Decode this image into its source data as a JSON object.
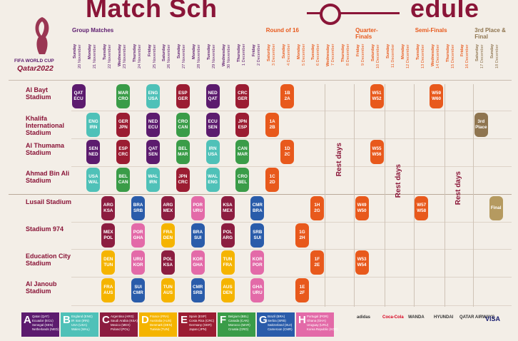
{
  "header": {
    "title_parts": [
      "Match Sch",
      "edule"
    ],
    "logo": [
      "FIFA WORLD CUP",
      "Qatar2022"
    ]
  },
  "stages": [
    {
      "name": "Group Matches",
      "color": "#5c1b6e"
    },
    {
      "name": "Round of 16",
      "color": "#e8591c"
    },
    {
      "name": "Quarter-Finals",
      "color": "#e8591c"
    },
    {
      "name": "Semi-Finals",
      "color": "#e8591c"
    },
    {
      "name": "3rd Place & Final",
      "color": "#8f7550"
    }
  ],
  "days": [
    {
      "weekday": "Sunday",
      "date": "20 November"
    },
    {
      "weekday": "Monday",
      "date": "21 November"
    },
    {
      "weekday": "Tuesday",
      "date": "22 November"
    },
    {
      "weekday": "Wednesday",
      "date": "23 November"
    },
    {
      "weekday": "Thursday",
      "date": "24 November"
    },
    {
      "weekday": "Friday",
      "date": "25 November"
    },
    {
      "weekday": "Saturday",
      "date": "26 November"
    },
    {
      "weekday": "Sunday",
      "date": "27 November"
    },
    {
      "weekday": "Monday",
      "date": "28 November"
    },
    {
      "weekday": "Tuesday",
      "date": "29 November"
    },
    {
      "weekday": "Wednesday",
      "date": "30 November"
    },
    {
      "weekday": "Thursday",
      "date": "1 December"
    },
    {
      "weekday": "Friday",
      "date": "2 December"
    },
    {
      "weekday": "Saturday",
      "date": "3 December"
    },
    {
      "weekday": "Sunday",
      "date": "4 December"
    },
    {
      "weekday": "Monday",
      "date": "5 December"
    },
    {
      "weekday": "Tuesday",
      "date": "6 December"
    },
    {
      "weekday": "Wednesday",
      "date": "7 December"
    },
    {
      "weekday": "Thursday",
      "date": "8 December"
    },
    {
      "weekday": "Friday",
      "date": "9 December"
    },
    {
      "weekday": "Saturday",
      "date": "10 December"
    },
    {
      "weekday": "Sunday",
      "date": "11 December"
    },
    {
      "weekday": "Monday",
      "date": "12 December"
    },
    {
      "weekday": "Tuesday",
      "date": "13 December"
    },
    {
      "weekday": "Wednesday",
      "date": "14 December"
    },
    {
      "weekday": "Thursday",
      "date": "15 December"
    },
    {
      "weekday": "Friday",
      "date": "16 December"
    },
    {
      "weekday": "Saturday",
      "date": "17 December"
    },
    {
      "weekday": "Sunday",
      "date": "18 December"
    }
  ],
  "rest_days": {
    "label": "Rest days",
    "periods": [
      [
        "7 December",
        "8 December"
      ],
      [
        "11 December",
        "12 December"
      ],
      [
        "15 December",
        "16 December"
      ]
    ]
  },
  "stadiums": [
    {
      "name": "Al Bayt Stadium",
      "matches": [
        {
          "date": "20 November",
          "teams": [
            "QAT",
            "ECU"
          ],
          "color": "#5c1b6e"
        },
        {
          "date": "23 November",
          "teams": [
            "MAR",
            "CRO"
          ],
          "color": "#3a9c48"
        },
        {
          "date": "25 November",
          "teams": [
            "ENG",
            "USA"
          ],
          "color": "#4fc1b8"
        },
        {
          "date": "27 November",
          "teams": [
            "ESP",
            "GER"
          ],
          "color": "#9b1c32"
        },
        {
          "date": "29 November",
          "teams": [
            "NED",
            "QAT"
          ],
          "color": "#5c1b6e"
        },
        {
          "date": "1 December",
          "teams": [
            "CRC",
            "GER"
          ],
          "color": "#9b1c32"
        },
        {
          "date": "4 December",
          "teams": [
            "1B",
            "2A"
          ],
          "color": "#e8591c"
        },
        {
          "date": "10 December",
          "teams": [
            "W51",
            "W52"
          ],
          "color": "#e8591c"
        },
        {
          "date": "14 December",
          "teams": [
            "W59",
            "W60"
          ],
          "color": "#e8591c"
        }
      ]
    },
    {
      "name": "Khalifa International Stadium",
      "matches": [
        {
          "date": "21 November",
          "teams": [
            "ENG",
            "IRN"
          ],
          "color": "#4fc1b8"
        },
        {
          "date": "23 November",
          "teams": [
            "GER",
            "JPN"
          ],
          "color": "#9b1c32"
        },
        {
          "date": "25 November",
          "teams": [
            "NED",
            "ECU"
          ],
          "color": "#5c1b6e"
        },
        {
          "date": "27 November",
          "teams": [
            "CRO",
            "CAN"
          ],
          "color": "#3a9c48"
        },
        {
          "date": "29 November",
          "teams": [
            "ECU",
            "SEN"
          ],
          "color": "#5c1b6e"
        },
        {
          "date": "1 December",
          "teams": [
            "JPN",
            "ESP"
          ],
          "color": "#9b1c32"
        },
        {
          "date": "3 December",
          "teams": [
            "1A",
            "2B"
          ],
          "color": "#e8591c"
        },
        {
          "date": "17 December",
          "teams": [
            "3rd",
            "Place"
          ],
          "color": "#8f7550"
        }
      ]
    },
    {
      "name": "Al Thumama Stadium",
      "matches": [
        {
          "date": "21 November",
          "teams": [
            "SEN",
            "NED"
          ],
          "color": "#5c1b6e"
        },
        {
          "date": "23 November",
          "teams": [
            "ESP",
            "CRC"
          ],
          "color": "#9b1c32"
        },
        {
          "date": "25 November",
          "teams": [
            "QAT",
            "SEN"
          ],
          "color": "#5c1b6e"
        },
        {
          "date": "27 November",
          "teams": [
            "BEL",
            "MAR"
          ],
          "color": "#3a9c48"
        },
        {
          "date": "29 November",
          "teams": [
            "IRN",
            "USA"
          ],
          "color": "#4fc1b8"
        },
        {
          "date": "1 December",
          "teams": [
            "CAN",
            "MAR"
          ],
          "color": "#3a9c48"
        },
        {
          "date": "4 December",
          "teams": [
            "1D",
            "2C"
          ],
          "color": "#e8591c"
        },
        {
          "date": "10 December",
          "teams": [
            "W55",
            "W56"
          ],
          "color": "#e8591c"
        }
      ]
    },
    {
      "name": "Ahmad Bin Ali Stadium",
      "matches": [
        {
          "date": "21 November",
          "teams": [
            "USA",
            "WAL"
          ],
          "color": "#4fc1b8"
        },
        {
          "date": "23 November",
          "teams": [
            "BEL",
            "CAN"
          ],
          "color": "#3a9c48"
        },
        {
          "date": "25 November",
          "teams": [
            "WAL",
            "IRN"
          ],
          "color": "#4fc1b8"
        },
        {
          "date": "27 November",
          "teams": [
            "JPN",
            "CRC"
          ],
          "color": "#9b1c32"
        },
        {
          "date": "29 November",
          "teams": [
            "WAL",
            "ENG"
          ],
          "color": "#4fc1b8"
        },
        {
          "date": "1 December",
          "teams": [
            "CRO",
            "BEL"
          ],
          "color": "#3a9c48"
        },
        {
          "date": "3 December",
          "teams": [
            "1C",
            "2D"
          ],
          "color": "#e8591c"
        }
      ]
    },
    {
      "name": "Lusail Stadium",
      "matches": [
        {
          "date": "22 November",
          "teams": [
            "ARG",
            "KSA"
          ],
          "color": "#8c1d40"
        },
        {
          "date": "24 November",
          "teams": [
            "BRA",
            "SRB"
          ],
          "color": "#2a5caa"
        },
        {
          "date": "26 November",
          "teams": [
            "ARG",
            "MEX"
          ],
          "color": "#8c1d40"
        },
        {
          "date": "28 November",
          "teams": [
            "POR",
            "URU"
          ],
          "color": "#e36aa8"
        },
        {
          "date": "30 November",
          "teams": [
            "KSA",
            "MEX"
          ],
          "color": "#8c1d40"
        },
        {
          "date": "2 December",
          "teams": [
            "CMR",
            "BRA"
          ],
          "color": "#2a5caa"
        },
        {
          "date": "6 December",
          "teams": [
            "1H",
            "2G"
          ],
          "color": "#e8591c"
        },
        {
          "date": "9 December",
          "teams": [
            "W49",
            "W50"
          ],
          "color": "#e8591c"
        },
        {
          "date": "13 December",
          "teams": [
            "W57",
            "W58"
          ],
          "color": "#e8591c"
        },
        {
          "date": "18 December",
          "teams": [
            "Final"
          ],
          "color": "#b59a60"
        }
      ]
    },
    {
      "name": "Stadium 974",
      "matches": [
        {
          "date": "22 November",
          "teams": [
            "MEX",
            "POL"
          ],
          "color": "#8c1d40"
        },
        {
          "date": "24 November",
          "teams": [
            "POR",
            "GHA"
          ],
          "color": "#e36aa8"
        },
        {
          "date": "26 November",
          "teams": [
            "FRA",
            "DEN"
          ],
          "color": "#f5b400"
        },
        {
          "date": "28 November",
          "teams": [
            "BRA",
            "SUI"
          ],
          "color": "#2a5caa"
        },
        {
          "date": "30 November",
          "teams": [
            "POL",
            "ARG"
          ],
          "color": "#8c1d40"
        },
        {
          "date": "2 December",
          "teams": [
            "SRB",
            "SUI"
          ],
          "color": "#2a5caa"
        },
        {
          "date": "5 December",
          "teams": [
            "1G",
            "2H"
          ],
          "color": "#e8591c"
        }
      ]
    },
    {
      "name": "Education City Stadium",
      "matches": [
        {
          "date": "22 November",
          "teams": [
            "DEN",
            "TUN"
          ],
          "color": "#f5b400"
        },
        {
          "date": "24 November",
          "teams": [
            "URU",
            "KOR"
          ],
          "color": "#e36aa8"
        },
        {
          "date": "26 November",
          "teams": [
            "POL",
            "KSA"
          ],
          "color": "#8c1d40"
        },
        {
          "date": "28 November",
          "teams": [
            "KOR",
            "GHA"
          ],
          "color": "#e36aa8"
        },
        {
          "date": "30 November",
          "teams": [
            "TUN",
            "FRA"
          ],
          "color": "#f5b400"
        },
        {
          "date": "2 December",
          "teams": [
            "KOR",
            "POR"
          ],
          "color": "#e36aa8"
        },
        {
          "date": "6 December",
          "teams": [
            "1F",
            "2E"
          ],
          "color": "#e8591c"
        },
        {
          "date": "9 December",
          "teams": [
            "W53",
            "W54"
          ],
          "color": "#e8591c"
        }
      ]
    },
    {
      "name": "Al Janoub Stadium",
      "matches": [
        {
          "date": "22 November",
          "teams": [
            "FRA",
            "AUS"
          ],
          "color": "#f5b400"
        },
        {
          "date": "24 November",
          "teams": [
            "SUI",
            "CMR"
          ],
          "color": "#2a5caa"
        },
        {
          "date": "26 November",
          "teams": [
            "TUN",
            "AUS"
          ],
          "color": "#f5b400"
        },
        {
          "date": "28 November",
          "teams": [
            "CMR",
            "SRB"
          ],
          "color": "#2a5caa"
        },
        {
          "date": "30 November",
          "teams": [
            "AUS",
            "DEN"
          ],
          "color": "#f5b400"
        },
        {
          "date": "2 December",
          "teams": [
            "GHA",
            "URU"
          ],
          "color": "#e36aa8"
        },
        {
          "date": "5 December",
          "teams": [
            "1E",
            "2F"
          ],
          "color": "#e8591c"
        }
      ]
    }
  ],
  "groups": [
    {
      "letter": "A",
      "color": "#5c1b6e",
      "teams": [
        "Qatar (QAT)",
        "Ecuador (ECU)",
        "Senegal (SEN)",
        "Netherlands (NED)"
      ]
    },
    {
      "letter": "B",
      "color": "#4fc1b8",
      "teams": [
        "England (ENG)",
        "IR Iran (IRN)",
        "USA (USA)",
        "Wales (WAL)"
      ]
    },
    {
      "letter": "C",
      "color": "#8c1d40",
      "teams": [
        "Argentina (ARG)",
        "Saudi Arabia (KSA)",
        "Mexico (MEX)",
        "Poland (POL)"
      ]
    },
    {
      "letter": "D",
      "color": "#f5b400",
      "teams": [
        "France (FRA)",
        "Australia (AUS)",
        "Denmark (DEN)",
        "Tunisia (TUN)"
      ]
    },
    {
      "letter": "E",
      "color": "#9b1c32",
      "teams": [
        "Spain (ESP)",
        "Costa Rica (CRC)",
        "Germany (GER)",
        "Japan (JPN)"
      ]
    },
    {
      "letter": "F",
      "color": "#3a9c48",
      "teams": [
        "Belgium (BEL)",
        "Canada (CAN)",
        "Morocco (MAR)",
        "Croatia (CRO)"
      ]
    },
    {
      "letter": "G",
      "color": "#2a5caa",
      "teams": [
        "Brazil (BRA)",
        "Serbia (SRB)",
        "Switzerland (SUI)",
        "Cameroon (CMR)"
      ]
    },
    {
      "letter": "H",
      "color": "#e36aa8",
      "teams": [
        "Portugal (POR)",
        "Ghana (GHA)",
        "Uruguay (URU)",
        "Korea Republic (KOR)"
      ]
    }
  ],
  "sponsors": [
    "adidas",
    "Coca-Cola",
    "WANDA",
    "HYUNDAI",
    "QATAR AIRWAYS",
    "VISA"
  ]
}
